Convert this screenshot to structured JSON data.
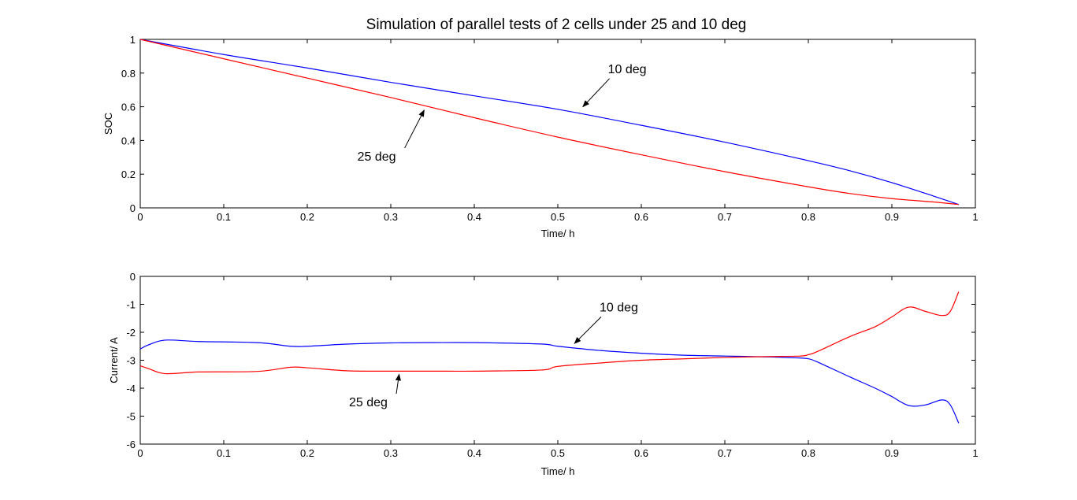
{
  "figure": {
    "title": "Simulation of parallel tests of 2 cells under 25 and 10 deg"
  },
  "chart_data": [
    {
      "type": "line",
      "title": "Simulation of parallel tests of 2 cells under 25 and 10 deg",
      "xlabel": "Time/ h",
      "ylabel": "SOC",
      "xlim": [
        0,
        1
      ],
      "ylim": [
        0,
        1
      ],
      "xticks": [
        "0",
        "0.1",
        "0.2",
        "0.3",
        "0.4",
        "0.5",
        "0.6",
        "0.7",
        "0.8",
        "0.9",
        "1"
      ],
      "yticks": [
        "0",
        "0.2",
        "0.4",
        "0.6",
        "0.8",
        "1"
      ],
      "xtick_values": [
        0,
        0.1,
        0.2,
        0.3,
        0.4,
        0.5,
        0.6,
        0.7,
        0.8,
        0.9,
        1
      ],
      "ytick_values": [
        0,
        0.2,
        0.4,
        0.6,
        0.8,
        1
      ],
      "grid": false,
      "series": [
        {
          "label": "10 deg",
          "color": "#0000ff",
          "x": [
            0,
            0.1,
            0.2,
            0.3,
            0.4,
            0.5,
            0.6,
            0.7,
            0.8,
            0.85,
            0.9,
            0.95,
            0.98
          ],
          "y": [
            1.0,
            0.91,
            0.83,
            0.745,
            0.665,
            0.585,
            0.49,
            0.39,
            0.28,
            0.22,
            0.15,
            0.07,
            0.02
          ]
        },
        {
          "label": "25 deg",
          "color": "#ff0000",
          "x": [
            0,
            0.1,
            0.2,
            0.3,
            0.4,
            0.5,
            0.6,
            0.7,
            0.8,
            0.85,
            0.9,
            0.95,
            0.98
          ],
          "y": [
            1.0,
            0.885,
            0.77,
            0.655,
            0.535,
            0.42,
            0.315,
            0.215,
            0.125,
            0.085,
            0.055,
            0.035,
            0.02
          ]
        }
      ],
      "annotations": [
        {
          "text": "10 deg",
          "arrow_to": [
            0.53,
            0.6
          ],
          "text_at": [
            0.56,
            0.8
          ]
        },
        {
          "text": "25 deg",
          "arrow_to": [
            0.34,
            0.58
          ],
          "text_at": [
            0.26,
            0.28
          ]
        }
      ]
    },
    {
      "type": "line",
      "xlabel": "Time/ h",
      "ylabel": "Current/ A",
      "xlim": [
        0,
        1
      ],
      "ylim": [
        -6,
        0
      ],
      "xticks": [
        "0",
        "0.1",
        "0.2",
        "0.3",
        "0.4",
        "0.5",
        "0.6",
        "0.7",
        "0.8",
        "0.9",
        "1"
      ],
      "yticks": [
        "-6",
        "-5",
        "-4",
        "-3",
        "-2",
        "-1",
        "0"
      ],
      "xtick_values": [
        0,
        0.1,
        0.2,
        0.3,
        0.4,
        0.5,
        0.6,
        0.7,
        0.8,
        0.9,
        1
      ],
      "ytick_values": [
        -6,
        -5,
        -4,
        -3,
        -2,
        -1,
        0
      ],
      "grid": false,
      "series": [
        {
          "label": "10 deg",
          "color": "#0000ff",
          "x": [
            0,
            0.01,
            0.03,
            0.07,
            0.14,
            0.18,
            0.2,
            0.25,
            0.3,
            0.35,
            0.4,
            0.48,
            0.5,
            0.55,
            0.6,
            0.65,
            0.7,
            0.75,
            0.79,
            0.8,
            0.81,
            0.85,
            0.88,
            0.9,
            0.92,
            0.94,
            0.96,
            0.97,
            0.98
          ],
          "y": [
            -2.6,
            -2.45,
            -2.28,
            -2.33,
            -2.37,
            -2.5,
            -2.5,
            -2.42,
            -2.38,
            -2.37,
            -2.37,
            -2.42,
            -2.5,
            -2.65,
            -2.75,
            -2.82,
            -2.85,
            -2.88,
            -2.92,
            -2.95,
            -3.05,
            -3.6,
            -4.0,
            -4.3,
            -4.62,
            -4.6,
            -4.42,
            -4.6,
            -5.25
          ]
        },
        {
          "label": "25 deg",
          "color": "#ff0000",
          "x": [
            0,
            0.01,
            0.03,
            0.07,
            0.14,
            0.18,
            0.2,
            0.25,
            0.3,
            0.35,
            0.4,
            0.48,
            0.5,
            0.55,
            0.6,
            0.65,
            0.7,
            0.75,
            0.79,
            0.8,
            0.81,
            0.85,
            0.88,
            0.9,
            0.92,
            0.94,
            0.96,
            0.97,
            0.98
          ],
          "y": [
            -3.2,
            -3.3,
            -3.48,
            -3.42,
            -3.4,
            -3.25,
            -3.27,
            -3.38,
            -3.39,
            -3.39,
            -3.39,
            -3.35,
            -3.22,
            -3.1,
            -3.0,
            -2.95,
            -2.9,
            -2.87,
            -2.85,
            -2.8,
            -2.7,
            -2.15,
            -1.8,
            -1.45,
            -1.1,
            -1.25,
            -1.4,
            -1.25,
            -0.55
          ]
        }
      ],
      "annotations": [
        {
          "text": "10 deg",
          "arrow_to": [
            0.52,
            -2.4
          ],
          "text_at": [
            0.55,
            -1.25
          ]
        },
        {
          "text": "25 deg",
          "arrow_to": [
            0.31,
            -3.5
          ],
          "text_at": [
            0.25,
            -4.65
          ]
        }
      ]
    }
  ]
}
